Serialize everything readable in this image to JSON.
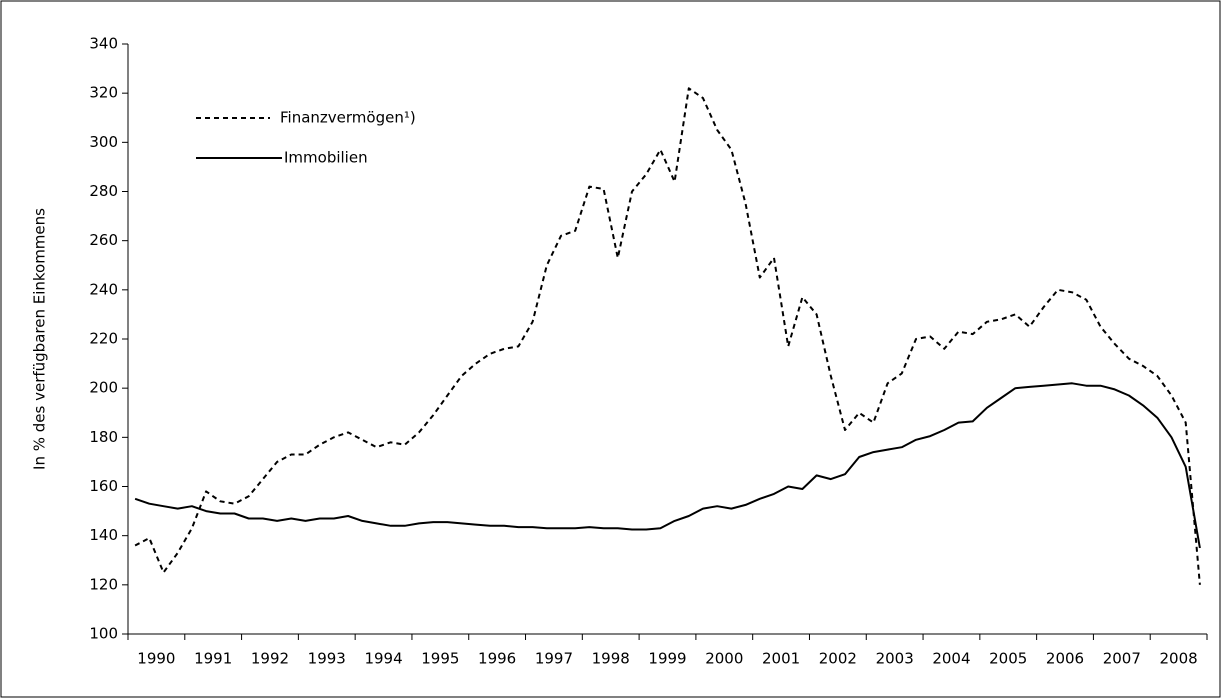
{
  "chart_data": {
    "type": "line",
    "y_label": "In % des verfügbaren Einkommens",
    "categories": [
      null,
      "1990",
      null,
      null,
      null,
      "1991",
      null,
      null,
      null,
      "1992",
      null,
      null,
      null,
      "1993",
      null,
      null,
      null,
      "1994",
      null,
      null,
      null,
      "1995",
      null,
      null,
      null,
      "1996",
      null,
      null,
      null,
      "1997",
      null,
      null,
      null,
      "1998",
      null,
      null,
      null,
      "1999",
      null,
      null,
      null,
      "2000",
      null,
      null,
      null,
      "2001",
      null,
      null,
      null,
      "2002",
      null,
      null,
      null,
      "2003",
      null,
      null,
      null,
      "2004",
      null,
      null,
      null,
      "2005",
      null,
      null,
      null,
      "2006",
      null,
      null,
      null,
      "2007",
      null,
      null,
      null,
      "2008",
      null,
      null
    ],
    "series": [
      {
        "name": "Finanzvermögen¹)",
        "color": "#000000",
        "dash": true,
        "values": [
          136,
          139,
          125,
          133,
          143,
          158,
          154,
          153,
          156,
          163,
          170,
          173,
          173,
          177,
          180,
          182,
          179,
          176,
          178,
          177,
          182,
          189,
          197,
          205,
          210,
          214,
          216,
          217,
          227,
          250,
          262,
          264,
          282,
          281,
          253,
          280,
          287,
          297,
          284,
          322,
          318,
          305,
          297,
          275,
          245,
          253,
          217,
          237,
          230,
          205,
          183,
          190,
          186,
          202,
          206,
          220,
          221,
          216,
          223,
          222,
          227,
          228,
          230,
          225,
          233,
          240,
          239,
          236,
          225,
          218,
          212,
          209,
          205,
          197,
          186,
          120
        ]
      },
      {
        "name": "Immobilien",
        "color": "#000000",
        "dash": false,
        "values": [
          155,
          153,
          152,
          151,
          152,
          150,
          149,
          149,
          147,
          147,
          146,
          147,
          146,
          147,
          147,
          148,
          146,
          145,
          144,
          144,
          145,
          145.5,
          145.5,
          145,
          144.5,
          144,
          144,
          143.5,
          143.5,
          143,
          143,
          143,
          143.5,
          143,
          143,
          142.5,
          142.5,
          143,
          146,
          148,
          151,
          152,
          151,
          152.5,
          155,
          157,
          160,
          159,
          164.5,
          163,
          165,
          172,
          174,
          175,
          176,
          179,
          180.5,
          183,
          186,
          186.5,
          192,
          196,
          200,
          200.5,
          201,
          201.5,
          202,
          201,
          201,
          199.5,
          197,
          193,
          188,
          180,
          168,
          135
        ]
      }
    ],
    "ylim": [
      100,
      340
    ],
    "yticks": [
      100,
      120,
      140,
      160,
      180,
      200,
      220,
      240,
      260,
      280,
      300,
      320,
      340
    ],
    "grid": false
  }
}
